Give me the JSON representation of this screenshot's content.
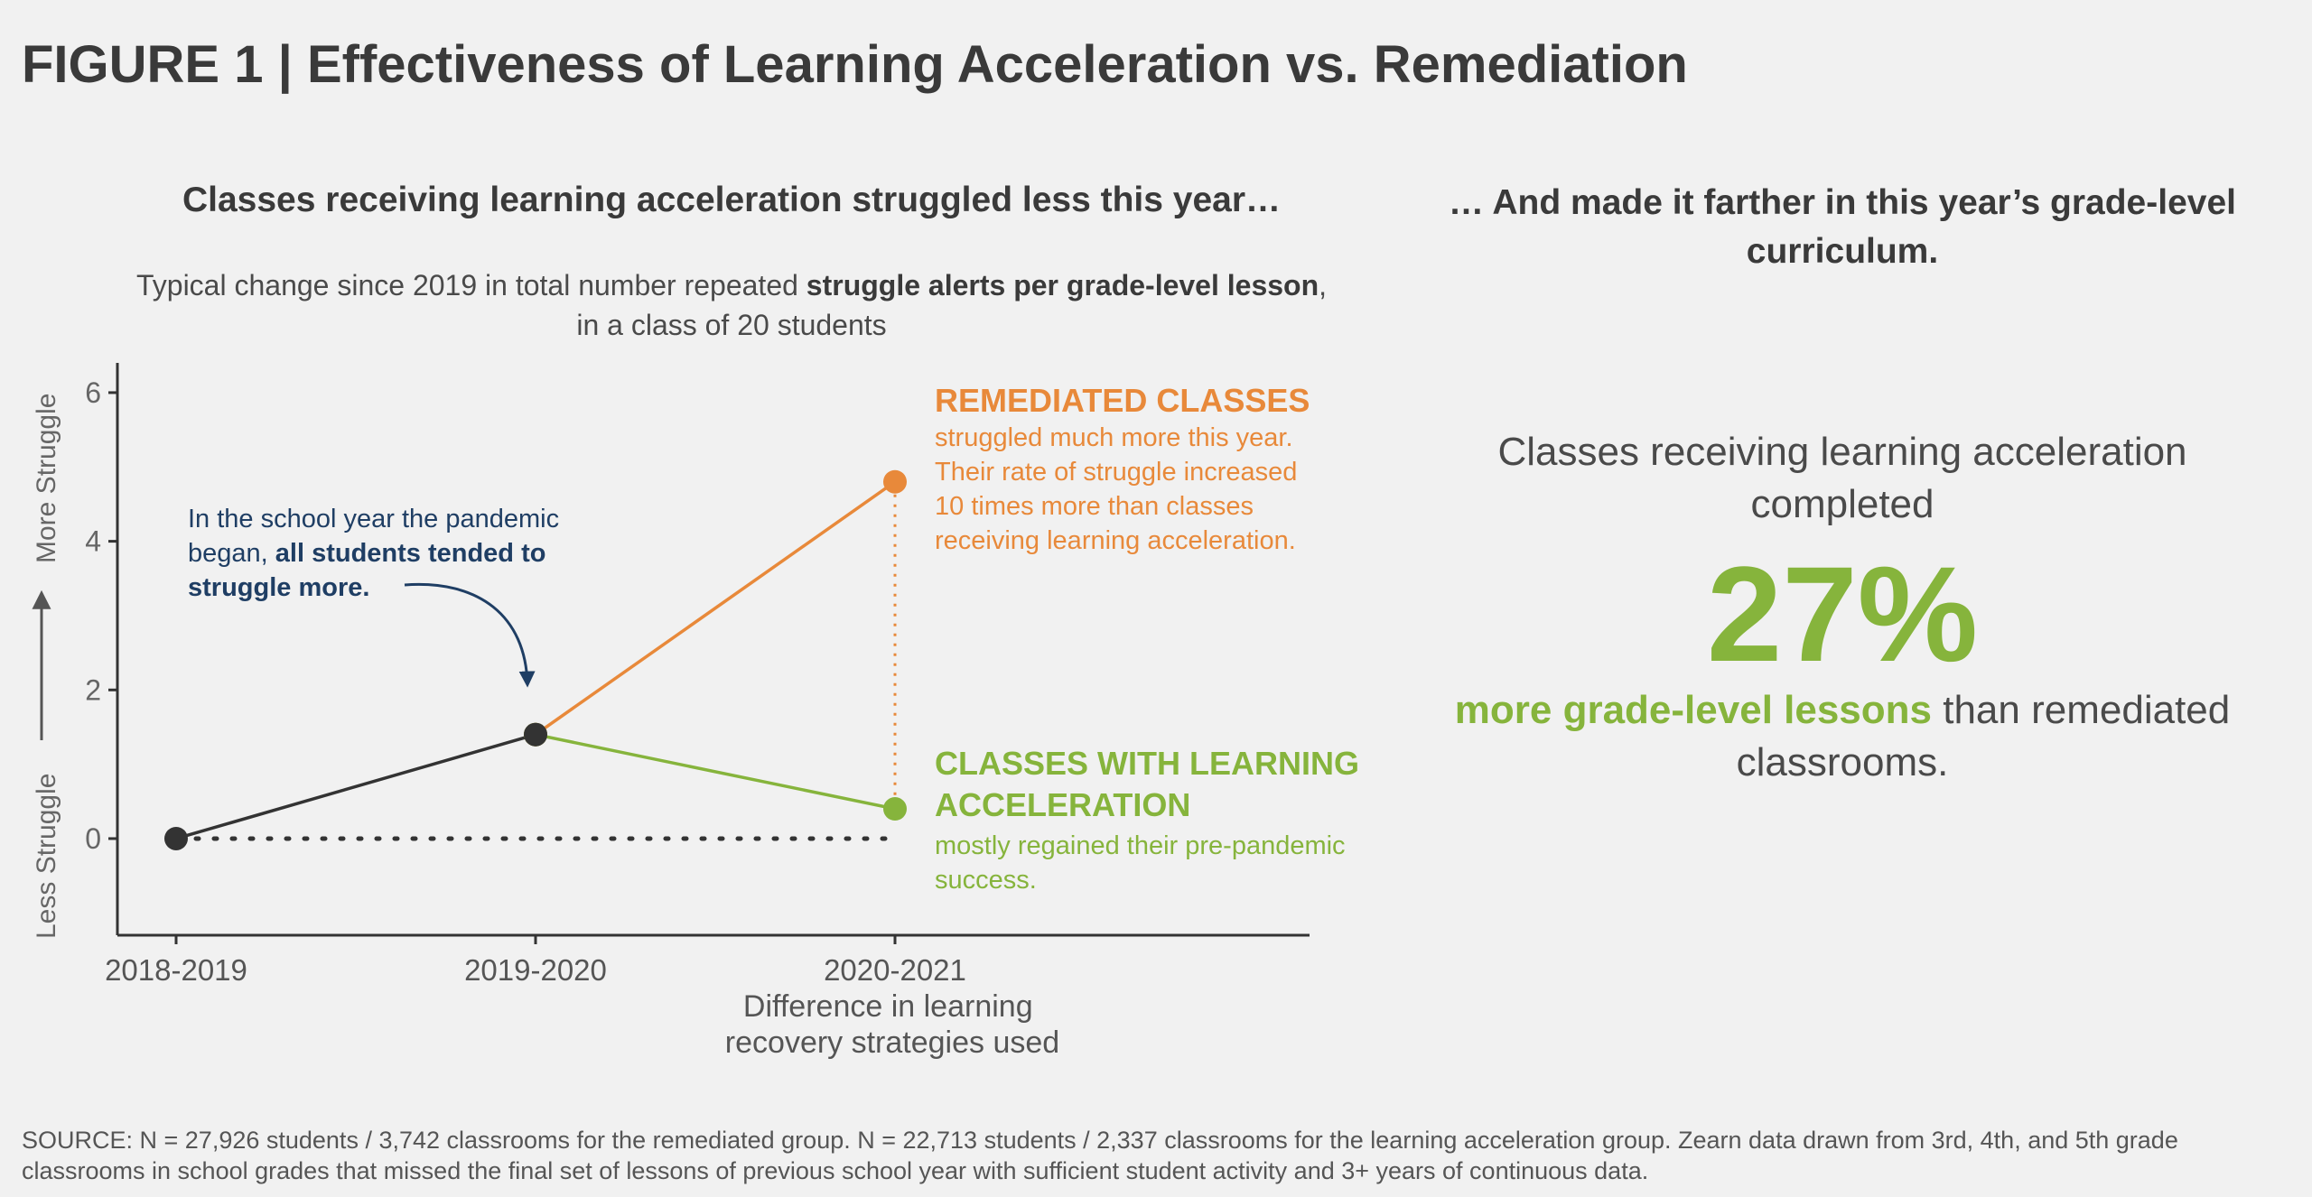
{
  "title": "FIGURE 1 | Effectiveness of Learning Acceleration vs. Remediation",
  "left_heading": "Classes receiving learning acceleration struggled less this year…",
  "subtitle": {
    "pre": "Typical change since 2019 in total number repeated ",
    "bold": "struggle alerts per grade-level lesson",
    "post": ", in a class of 20 students"
  },
  "chart_data": {
    "type": "line",
    "categories": [
      "2018-2019",
      "2019-2020",
      "2020-2021"
    ],
    "xlabel": "Difference in learning recovery strategies used",
    "ylabel_top": "More Struggle",
    "ylabel_bottom": "Less Struggle",
    "ylim": [
      -1.3,
      6.4
    ],
    "yticks": [
      0,
      2,
      4,
      6
    ],
    "grid": false,
    "series": [
      {
        "name": "",
        "color": "#333333",
        "x": [
          "2018-2019",
          "2019-2020"
        ],
        "values": [
          0,
          1.4
        ]
      },
      {
        "name": "REMEDIATED CLASSES",
        "color": "#e8893a",
        "x": [
          "2019-2020",
          "2020-2021"
        ],
        "values": [
          1.4,
          4.8
        ]
      },
      {
        "name": "CLASSES WITH LEARNING ACCELERATION",
        "color": "#86b43c",
        "x": [
          "2019-2020",
          "2020-2021"
        ],
        "values": [
          1.4,
          0.4
        ]
      }
    ],
    "annotations": {
      "pandemic": {
        "line1": "In the school year the pandemic",
        "line2_pre": "began, ",
        "line2_bold": "all students tended to",
        "line3_bold": "struggle more."
      },
      "remediated": {
        "title": "REMEDIATED CLASSES",
        "lines": [
          "struggled much more this year.",
          "Their rate of struggle increased",
          "10 times more than classes",
          "receiving learning acceleration."
        ]
      },
      "acceleration": {
        "title_lines": [
          "CLASSES WITH LEARNING",
          "ACCELERATION"
        ],
        "lines": [
          "mostly regained their pre-pandemic",
          "success."
        ]
      }
    },
    "colors": {
      "annotation_text": "#1f3e64",
      "axis": "#333333"
    }
  },
  "right": {
    "heading": "… And made it farther in this year’s grade-level curriculum.",
    "pre": "Classes receiving learning acceleration completed",
    "stat": "27%",
    "post_highlight": "more grade-level lessons",
    "post_rest": " than remediated classrooms."
  },
  "source": "SOURCE: N = 27,926 students / 3,742 classrooms for the remediated group. N = 22,713 students / 2,337 classrooms for the learning acceleration group. Zearn data drawn from 3rd, 4th, and 5th grade classrooms in school grades that missed the final set of lessons of previous school year with sufficient student activity and 3+ years of continuous data."
}
